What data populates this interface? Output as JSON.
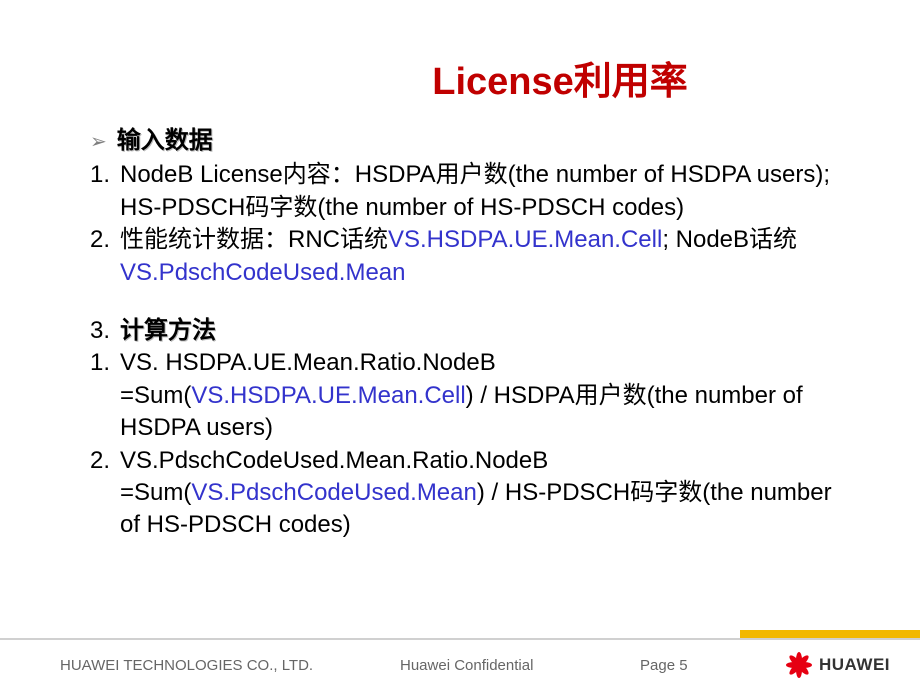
{
  "title": "License利用率",
  "section1": {
    "heading": "输入数据",
    "items": [
      {
        "num": "1.",
        "pre": "NodeB License内容：HSDPA用户数(the number of HSDPA users); HS-PDSCH码字数(the number of HS-PDSCH codes)"
      },
      {
        "num": "2.",
        "pre": "性能统计数据：RNC话统",
        "code1": "VS.HSDPA.UE.Mean.Cell",
        "mid": "; NodeB话统",
        "code2": "VS.PdschCodeUsed.Mean"
      }
    ]
  },
  "section2": {
    "num": "3.",
    "heading": "计算方法",
    "items": [
      {
        "num": "1.",
        "line1": "VS. HSDPA.UE.Mean.Ratio.NodeB",
        "eq_pre": "=Sum(",
        "eq_code": "VS.HSDPA.UE.Mean.Cell",
        "eq_post": ") / HSDPA用户数(the number of HSDPA users)"
      },
      {
        "num": "2.",
        "line1": "VS.PdschCodeUsed.Mean.Ratio.NodeB",
        "eq_pre": "=Sum(",
        "eq_code": "VS.PdschCodeUsed.Mean",
        "eq_post": ") / HS-PDSCH码字数(the number of HS-PDSCH codes)"
      }
    ]
  },
  "footer": {
    "company": "HUAWEI TECHNOLOGIES CO., LTD.",
    "confidential": "Huawei Confidential",
    "page": "Page 5",
    "logo_text": "HUAWEI"
  },
  "colors": {
    "title": "#c00000",
    "link": "#3333cc",
    "text": "#000000",
    "footer_text": "#666666",
    "accent_bar": "#f2b800",
    "logo_red": "#e60012"
  }
}
